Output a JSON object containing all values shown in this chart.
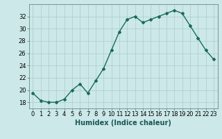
{
  "x": [
    0,
    1,
    2,
    3,
    4,
    5,
    6,
    7,
    8,
    9,
    10,
    11,
    12,
    13,
    14,
    15,
    16,
    17,
    18,
    19,
    20,
    21,
    22,
    23
  ],
  "y": [
    19.5,
    18.3,
    18.0,
    18.0,
    18.5,
    20.0,
    21.0,
    19.5,
    21.5,
    23.5,
    26.5,
    29.5,
    31.5,
    32.0,
    31.0,
    31.5,
    32.0,
    32.5,
    33.0,
    32.5,
    30.5,
    28.5,
    26.5,
    25.0
  ],
  "line_color": "#1a6b5a",
  "marker": "D",
  "marker_size": 2.0,
  "bg_color": "#cce8e8",
  "grid_color": "#aacccc",
  "xlabel": "Humidex (Indice chaleur)",
  "xlim": [
    -0.5,
    23.5
  ],
  "ylim": [
    17,
    34
  ],
  "yticks": [
    18,
    20,
    22,
    24,
    26,
    28,
    30,
    32
  ],
  "xticks": [
    0,
    1,
    2,
    3,
    4,
    5,
    6,
    7,
    8,
    9,
    10,
    11,
    12,
    13,
    14,
    15,
    16,
    17,
    18,
    19,
    20,
    21,
    22,
    23
  ],
  "xlabel_fontsize": 7.0,
  "tick_fontsize": 6.0,
  "linewidth": 1.0
}
